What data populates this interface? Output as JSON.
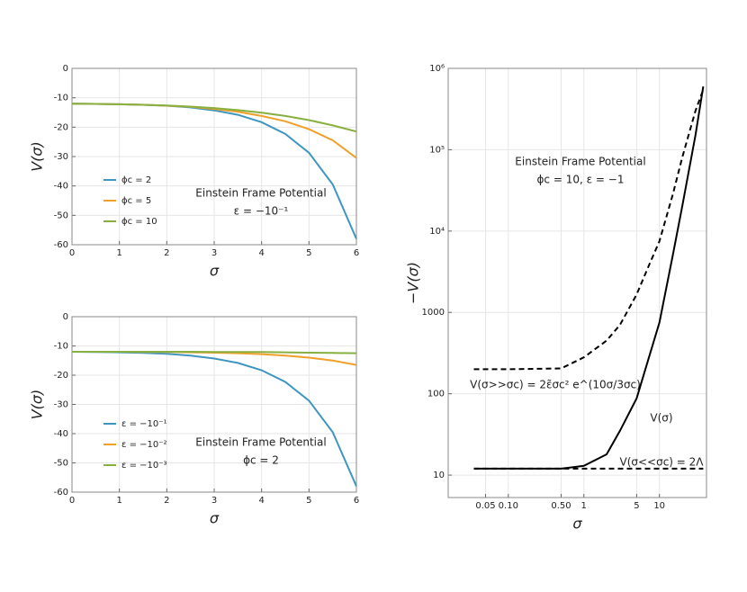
{
  "chart_data": [
    {
      "type": "line",
      "xlabel": "σ",
      "ylabel": "V(σ)",
      "annotations": [
        "Einstein Frame Potential",
        "ε = −10⁻¹"
      ],
      "x": [
        0,
        0.5,
        1,
        1.5,
        2,
        2.5,
        3,
        3.5,
        4,
        4.5,
        5,
        5.5,
        6
      ],
      "series": [
        {
          "name": "ϕc = 2",
          "color": "#3e96c0",
          "values": [
            -12,
            -12.1,
            -12.2,
            -12.4,
            -12.7,
            -13.3,
            -14.3,
            -15.8,
            -18.3,
            -22.3,
            -28.7,
            -39.5,
            -58
          ]
        },
        {
          "name": "ϕc = 5",
          "color": "#f0a02a",
          "values": [
            -12,
            -12.1,
            -12.2,
            -12.4,
            -12.7,
            -13.1,
            -13.8,
            -14.8,
            -16.2,
            -18,
            -20.7,
            -24.5,
            -30.5
          ]
        },
        {
          "name": "ϕc = 10",
          "color": "#88b040",
          "values": [
            -12,
            -12.1,
            -12.2,
            -12.4,
            -12.6,
            -13,
            -13.5,
            -14.2,
            -15.1,
            -16.2,
            -17.6,
            -19.4,
            -21.5
          ]
        }
      ],
      "xlim": [
        0,
        6
      ],
      "xticks": [
        0,
        1,
        2,
        3,
        4,
        5,
        6
      ],
      "ylim": [
        -60,
        0
      ],
      "yticks": [
        -60,
        -50,
        -40,
        -30,
        -20,
        -10,
        0
      ],
      "grid": true,
      "legend": "lower left"
    },
    {
      "type": "line",
      "xlabel": "σ",
      "ylabel": "V(σ)",
      "annotations": [
        "Einstein Frame Potential",
        "ϕc = 2"
      ],
      "x": [
        0,
        0.5,
        1,
        1.5,
        2,
        2.5,
        3,
        3.5,
        4,
        4.5,
        5,
        5.5,
        6
      ],
      "series": [
        {
          "name": "ε = −10⁻¹",
          "color": "#3e96c0",
          "values": [
            -12,
            -12.1,
            -12.2,
            -12.4,
            -12.7,
            -13.3,
            -14.3,
            -15.8,
            -18.3,
            -22.3,
            -28.7,
            -39.5,
            -58
          ]
        },
        {
          "name": "ε = −10⁻²",
          "color": "#f0a02a",
          "values": [
            -12,
            -12,
            -12,
            -12.05,
            -12.1,
            -12.2,
            -12.3,
            -12.5,
            -12.8,
            -13.3,
            -14,
            -15,
            -16.5
          ]
        },
        {
          "name": "ε = −10⁻³",
          "color": "#88b040",
          "values": [
            -12,
            -12,
            -12,
            -12,
            -12,
            -12,
            -12.05,
            -12.1,
            -12.1,
            -12.2,
            -12.3,
            -12.4,
            -12.5
          ]
        }
      ],
      "xlim": [
        0,
        6
      ],
      "xticks": [
        0,
        1,
        2,
        3,
        4,
        5,
        6
      ],
      "ylim": [
        -60,
        0
      ],
      "yticks": [
        -60,
        -50,
        -40,
        -30,
        -20,
        -10,
        0
      ],
      "grid": true,
      "legend": "lower left"
    },
    {
      "type": "line",
      "xlabel": "σ",
      "ylabel": "−V(σ)",
      "log_x": true,
      "log_y": true,
      "annotations": [
        "Einstein Frame Potential",
        "ϕc = 10, ε = −1"
      ],
      "x": [
        0.035,
        0.1,
        0.5,
        1,
        2,
        3,
        5,
        7,
        10,
        15,
        20,
        30,
        38
      ],
      "series": [
        {
          "name": "V(σ>>σc) = 2ε̃σc² e^(10σ/3σc)",
          "color": "#000000",
          "dashed": true,
          "values": [
            200,
            200,
            205,
            280,
            450,
            700,
            1660,
            3500,
            7500,
            28000,
            80000,
            300000,
            550000
          ]
        },
        {
          "name": "V(σ)",
          "color": "#000000",
          "values": [
            12,
            12,
            12,
            13,
            18,
            35,
            88,
            250,
            750,
            5000,
            20000,
            150000,
            600000
          ]
        },
        {
          "name": "V(σ<<σc) = 2Λ",
          "color": "#000000",
          "dashed": true,
          "x": [
            0.035,
            38
          ],
          "values": [
            12,
            12
          ]
        }
      ],
      "xlim": [
        0.016,
        42
      ],
      "xticks": [
        0.05,
        {
          "value": 0.1,
          "label": "0.10"
        },
        {
          "value": 0.5,
          "label": "0.50"
        },
        1,
        5,
        10
      ],
      "ylim": [
        5.3,
        1000000
      ],
      "yticks": [
        10,
        100,
        1000,
        {
          "value": 10000,
          "label": "10⁴"
        },
        {
          "value": 100000,
          "label": "10⁵"
        },
        {
          "value": 1000000,
          "label": "10⁶"
        }
      ],
      "grid": true,
      "legend": "inline"
    }
  ]
}
